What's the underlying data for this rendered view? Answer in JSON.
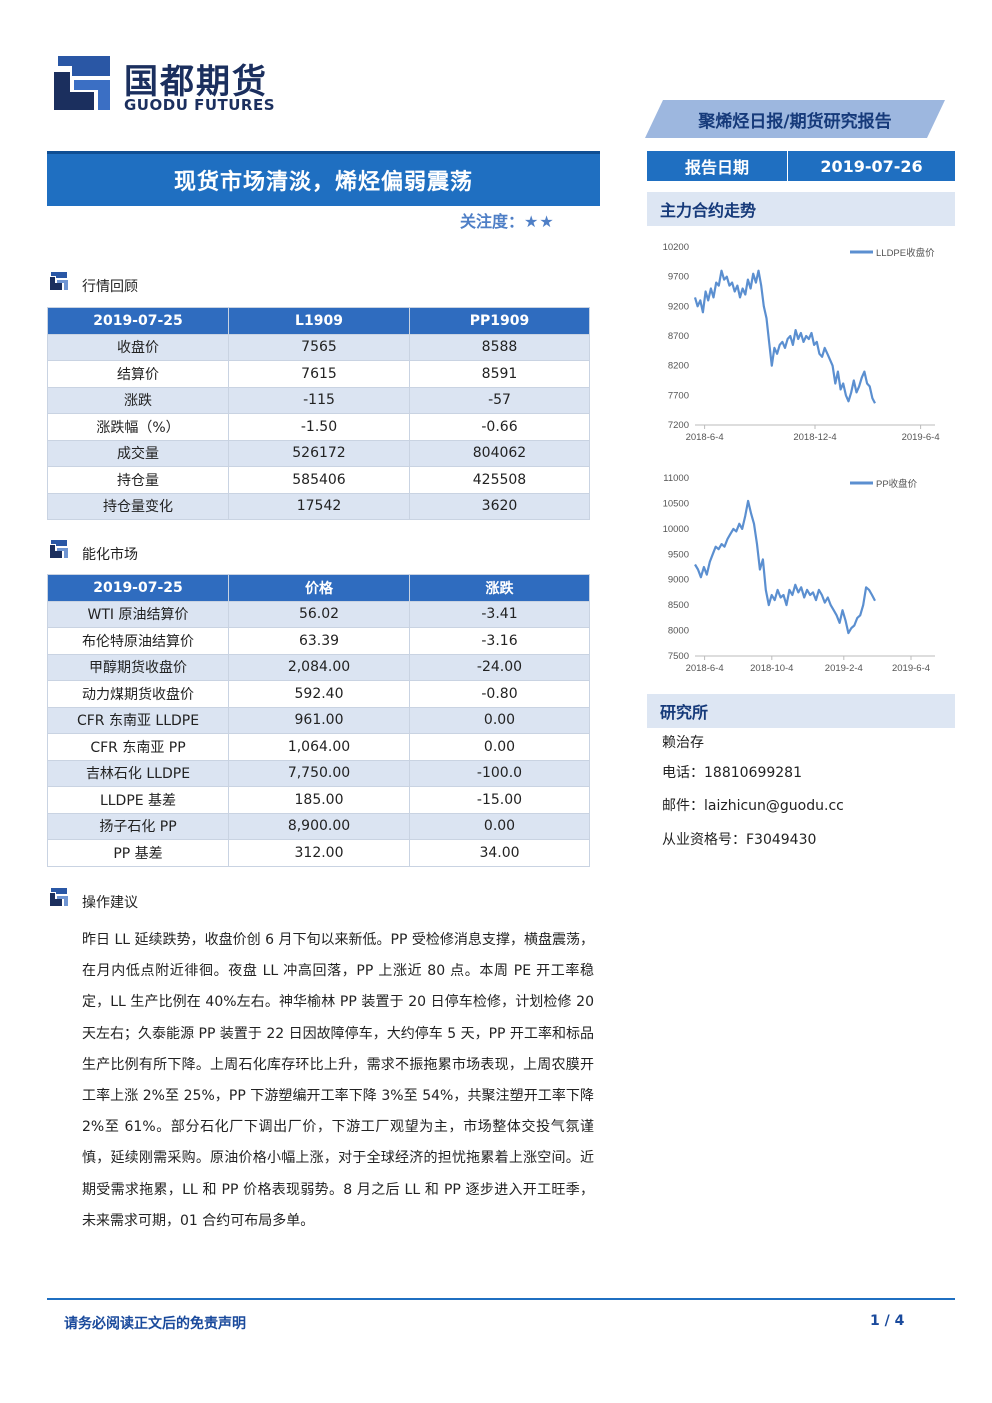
{
  "header": {
    "logo_cn": "国都期货",
    "logo_en": "GUODU FUTURES",
    "tagline": "聚烯烃日报/期货研究报告",
    "title": "现货市场清淡，烯烃偏弱震荡",
    "focus_label": "关注度：",
    "focus_stars": "★★",
    "report_date_label": "报告日期",
    "report_date": "2019-07-26"
  },
  "sections": {
    "market_review": "行情回顾",
    "energy_market": "能化市场",
    "suggestion": "操作建议",
    "main_trend": "主力合约走势",
    "research": "研究所"
  },
  "market_table": {
    "headers": [
      "2019-07-25",
      "L1909",
      "PP1909"
    ],
    "rows": [
      [
        "收盘价",
        "7565",
        "8588"
      ],
      [
        "结算价",
        "7615",
        "8591"
      ],
      [
        "涨跌",
        "-115",
        "-57"
      ],
      [
        "涨跌幅（%）",
        "-1.50",
        "-0.66"
      ],
      [
        "成交量",
        "526172",
        "804062"
      ],
      [
        "持仓量",
        "585406",
        "425508"
      ],
      [
        "持仓量变化",
        "17542",
        "3620"
      ]
    ]
  },
  "energy_table": {
    "headers": [
      "2019-07-25",
      "价格",
      "涨跌"
    ],
    "rows": [
      [
        "WTI 原油结算价",
        "56.02",
        "-3.41"
      ],
      [
        "布伦特原油结算价",
        "63.39",
        "-3.16"
      ],
      [
        "甲醇期货收盘价",
        "2,084.00",
        "-24.00"
      ],
      [
        "动力煤期货收盘价",
        "592.40",
        "-0.80"
      ],
      [
        "CFR 东南亚 LLDPE",
        "961.00",
        "0.00"
      ],
      [
        "CFR 东南亚 PP",
        "1,064.00",
        "0.00"
      ],
      [
        "吉林石化 LLDPE",
        "7,750.00",
        "-100.0"
      ],
      [
        "LLDPE 基差",
        "185.00",
        "-15.00"
      ],
      [
        "扬子石化 PP",
        "8,900.00",
        "0.00"
      ],
      [
        "PP 基差",
        "312.00",
        "34.00"
      ]
    ]
  },
  "suggestion_text": "昨日 LL 延续跌势，收盘价创 6 月下旬以来新低。PP 受检修消息支撑，横盘震荡，在月内低点附近徘徊。夜盘 LL 冲高回落，PP 上涨近 80 点。本周 PE 开工率稳定，LL 生产比例在 40%左右。神华榆林 PP 装置于 20 日停车检修，计划检修 20 天左右；久泰能源 PP 装置于 22 日因故障停车，大约停车 5 天，PP 开工率和标品生产比例有所下降。上周石化库存环比上升，需求不振拖累市场表现，上周农膜开工率上涨 2%至 25%，PP 下游塑编开工率下降 3%至 54%，共聚注塑开工率下降 2%至 61%。部分石化厂下调出厂价，下游工厂观望为主，市场整体交投气氛谨慎，延续刚需采购。原油价格小幅上涨，对于全球经济的担忧拖累着上涨空间。近期受需求拖累，LL 和 PP 价格表现弱势。8 月之后 LL 和 PP 逐步进入开工旺季，未来需求可期，01 合约可布局多单。",
  "research": {
    "name": "赖治存",
    "phone": "电话：18810699281",
    "email": "邮件：laizhicun@guodu.cc",
    "license": "从业资格号：F3049430"
  },
  "footer": {
    "disclaimer": "请务必阅读正文后的免责声明",
    "page": "1 / 4"
  },
  "colors": {
    "brand_blue": "#1f6fc1",
    "line_blue": "#5b8fd0",
    "row_tint": "#dbe4f2"
  },
  "chart_data": [
    {
      "type": "line",
      "series": [
        {
          "name": "LLDPE收盘价",
          "values": [
            9350,
            9200,
            9300,
            9100,
            9450,
            9300,
            9500,
            9350,
            9600,
            9550,
            9800,
            9650,
            9700,
            9550,
            9600,
            9450,
            9550,
            9350,
            9500,
            9400,
            9650,
            9500,
            9750,
            9600,
            9800,
            9550,
            9200,
            9000,
            8600,
            8200,
            8500,
            8400,
            8550,
            8600,
            8500,
            8650,
            8700,
            8550,
            8800,
            8650,
            8750,
            8600,
            8700,
            8650,
            8750,
            8550,
            8600,
            8400,
            8350,
            8500,
            8400,
            8300,
            8200,
            7900,
            8100,
            7800,
            7900,
            7700,
            7600,
            7750,
            7950,
            7750,
            7850,
            8000,
            8100,
            7900,
            7850,
            7650,
            7565
          ]
        }
      ],
      "x_tick_labels": [
        "2018-6-4",
        "2018-12-4",
        "2019-6-4"
      ],
      "y_tick_labels": [
        "10200",
        "9700",
        "9200",
        "8700",
        "8200",
        "7700",
        "7200"
      ],
      "ylim": [
        7200,
        10200
      ]
    },
    {
      "type": "line",
      "series": [
        {
          "name": "PP收盘价",
          "values": [
            9300,
            9200,
            9050,
            9250,
            9100,
            9350,
            9500,
            9650,
            9600,
            9700,
            9650,
            9800,
            9900,
            10000,
            9950,
            10100,
            10000,
            10250,
            10550,
            10300,
            10100,
            9700,
            9200,
            9400,
            8800,
            8500,
            8700,
            8600,
            8800,
            8650,
            8700,
            8500,
            8800,
            8700,
            8900,
            8750,
            8850,
            8650,
            8800,
            8700,
            8750,
            8600,
            8800,
            8700,
            8550,
            8650,
            8500,
            8400,
            8300,
            8150,
            8400,
            8200,
            7950,
            8050,
            8100,
            8250,
            8300,
            8500,
            8850,
            8800,
            8700,
            8588
          ]
        }
      ],
      "x_tick_labels": [
        "2018-6-4",
        "2018-10-4",
        "2019-2-4",
        "2019-6-4"
      ],
      "y_tick_labels": [
        "11000",
        "10500",
        "10000",
        "9500",
        "9000",
        "8500",
        "8000",
        "7500"
      ],
      "ylim": [
        7500,
        11000
      ]
    }
  ]
}
